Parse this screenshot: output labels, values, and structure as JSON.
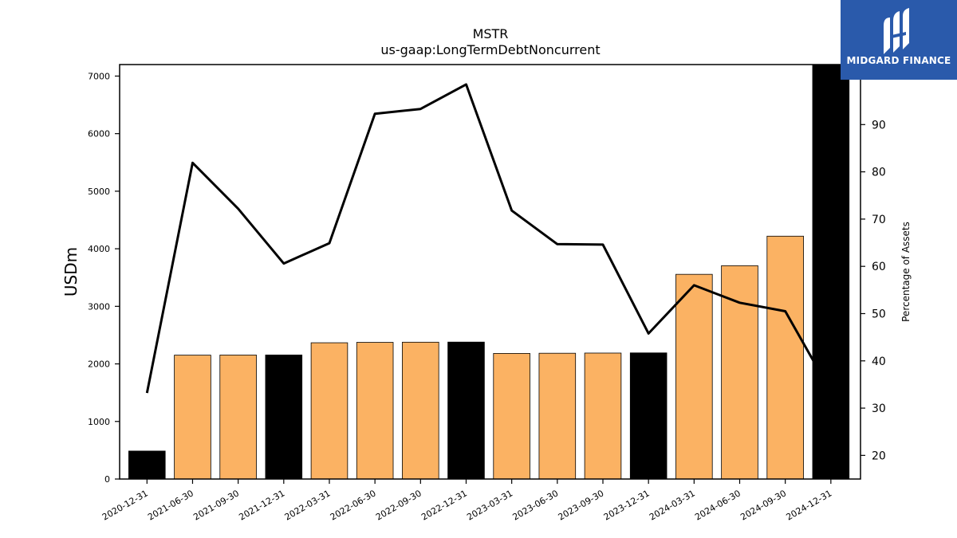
{
  "chart_data": {
    "type": "bar",
    "title": "MSTR",
    "subtitle": "us-gaap:LongTermDebtNoncurrent",
    "ylabel": "USDm",
    "y2label": "Percentage of Assets",
    "categories": [
      "2020-12-31",
      "2021-06-30",
      "2021-09-30",
      "2021-12-31",
      "2022-03-31",
      "2022-06-30",
      "2022-09-30",
      "2022-12-31",
      "2023-03-31",
      "2023-06-30",
      "2023-09-30",
      "2023-12-31",
      "2024-03-31",
      "2024-06-30",
      "2024-09-30",
      "2024-12-31"
    ],
    "values": [
      486,
      2152,
      2154,
      2155,
      2367,
      2374,
      2377,
      2379,
      2182,
      2185,
      2188,
      2191,
      3556,
      3706,
      4219,
      7190
    ],
    "bar_colors": [
      "#000000",
      "#fbb263",
      "#fbb263",
      "#000000",
      "#fbb263",
      "#fbb263",
      "#fbb263",
      "#000000",
      "#fbb263",
      "#fbb263",
      "#fbb263",
      "#000000",
      "#fbb263",
      "#fbb263",
      "#fbb263",
      "#000000"
    ],
    "line_values": [
      33.2,
      81.9,
      72.2,
      60.6,
      64.9,
      92.3,
      93.3,
      98.5,
      71.8,
      64.7,
      64.6,
      45.8,
      56.0,
      52.3,
      50.5,
      33.5
    ],
    "ylim": [
      0,
      7200
    ],
    "y_ticks": [
      0,
      1000,
      2000,
      3000,
      4000,
      5000,
      6000,
      7000
    ],
    "y2lim": [
      15,
      102.7
    ],
    "y2_ticks": [
      20,
      30,
      40,
      50,
      60,
      70,
      80,
      90
    ]
  },
  "logo": {
    "text": "MIDGARD FINANCE"
  }
}
